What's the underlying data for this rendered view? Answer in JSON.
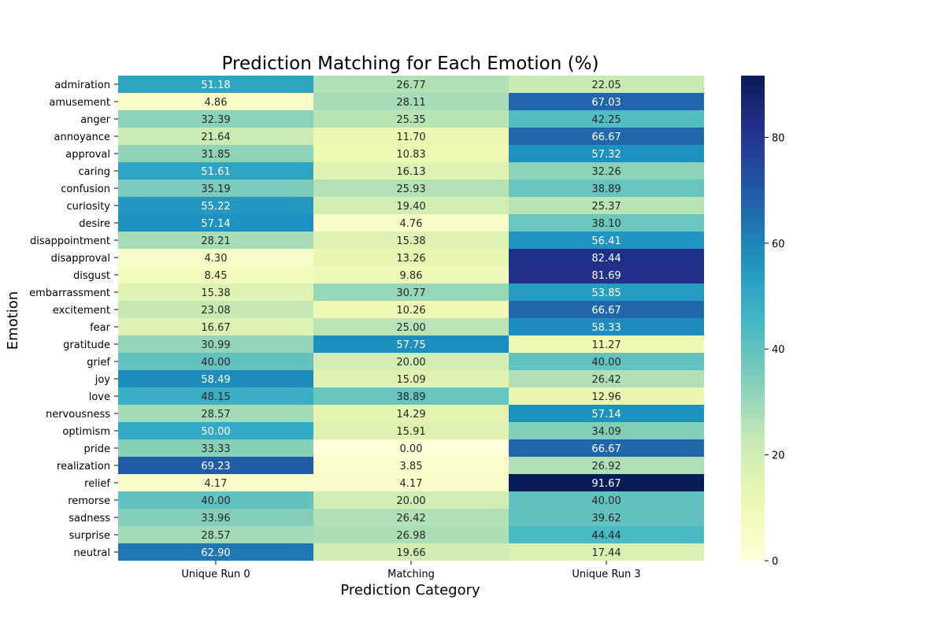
{
  "chart_data": {
    "type": "heatmap",
    "title": "Prediction Matching for Each Emotion (%)",
    "xlabel": "Prediction Category",
    "ylabel": "Emotion",
    "columns": [
      "Unique Run 0",
      "Matching",
      "Unique Run 3"
    ],
    "rows": [
      "admiration",
      "amusement",
      "anger",
      "annoyance",
      "approval",
      "caring",
      "confusion",
      "curiosity",
      "desire",
      "disappointment",
      "disapproval",
      "disgust",
      "embarrassment",
      "excitement",
      "fear",
      "gratitude",
      "grief",
      "joy",
      "love",
      "nervousness",
      "optimism",
      "pride",
      "realization",
      "relief",
      "remorse",
      "sadness",
      "surprise",
      "neutral"
    ],
    "values": [
      [
        51.18,
        26.77,
        22.05
      ],
      [
        4.86,
        28.11,
        67.03
      ],
      [
        32.39,
        25.35,
        42.25
      ],
      [
        21.64,
        11.7,
        66.67
      ],
      [
        31.85,
        10.83,
        57.32
      ],
      [
        51.61,
        16.13,
        32.26
      ],
      [
        35.19,
        25.93,
        38.89
      ],
      [
        55.22,
        19.4,
        25.37
      ],
      [
        57.14,
        4.76,
        38.1
      ],
      [
        28.21,
        15.38,
        56.41
      ],
      [
        4.3,
        13.26,
        82.44
      ],
      [
        8.45,
        9.86,
        81.69
      ],
      [
        15.38,
        30.77,
        53.85
      ],
      [
        23.08,
        10.26,
        66.67
      ],
      [
        16.67,
        25.0,
        58.33
      ],
      [
        30.99,
        57.75,
        11.27
      ],
      [
        40.0,
        20.0,
        40.0
      ],
      [
        58.49,
        15.09,
        26.42
      ],
      [
        48.15,
        38.89,
        12.96
      ],
      [
        28.57,
        14.29,
        57.14
      ],
      [
        50.0,
        15.91,
        34.09
      ],
      [
        33.33,
        0.0,
        66.67
      ],
      [
        69.23,
        3.85,
        26.92
      ],
      [
        4.17,
        4.17,
        91.67
      ],
      [
        40.0,
        20.0,
        40.0
      ],
      [
        33.96,
        26.42,
        39.62
      ],
      [
        28.57,
        26.98,
        44.44
      ],
      [
        62.9,
        19.66,
        17.44
      ]
    ],
    "colormap": "YlGnBu",
    "value_range": [
      0,
      91.67
    ],
    "colorbar_ticks": [
      0,
      20,
      40,
      60,
      80
    ]
  }
}
